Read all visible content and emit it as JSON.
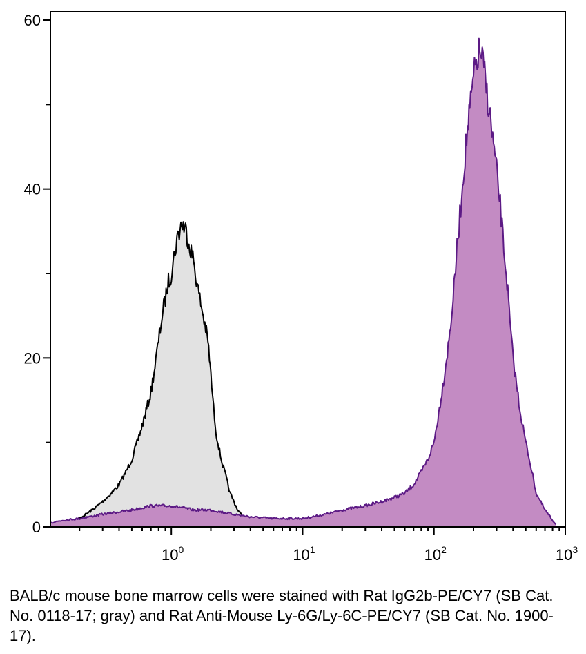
{
  "chart_data": {
    "type": "area",
    "title": "",
    "xlabel": "",
    "ylabel": "",
    "x_scale": "log",
    "xlim": [
      0.12,
      1000
    ],
    "ylim": [
      0,
      60
    ],
    "x_ticks": [
      {
        "value": 1,
        "base": "10",
        "exp": "0"
      },
      {
        "value": 10,
        "base": "10",
        "exp": "1"
      },
      {
        "value": 100,
        "base": "10",
        "exp": "2"
      },
      {
        "value": 1000,
        "base": "10",
        "exp": "3"
      }
    ],
    "y_ticks": [
      "0",
      "20",
      "40",
      "60"
    ],
    "grid": false,
    "series": [
      {
        "color_line": "#000000",
        "color_fill": "#e2e2e2",
        "x": [
          0.12,
          0.15,
          0.2,
          0.25,
          0.3,
          0.35,
          0.4,
          0.45,
          0.5,
          0.55,
          0.6,
          0.65,
          0.7,
          0.75,
          0.8,
          0.85,
          0.9,
          0.95,
          1.0,
          1.05,
          1.1,
          1.15,
          1.2,
          1.3,
          1.4,
          1.5,
          1.6,
          1.7,
          1.8,
          1.9,
          2.0,
          2.1,
          2.2,
          2.4,
          2.6,
          2.8,
          3.0,
          3.2,
          3.6,
          4.0,
          5.0
        ],
        "y": [
          0.2,
          0.5,
          1.0,
          2.0,
          3.0,
          4.0,
          5.0,
          6.5,
          8.0,
          10.0,
          12.0,
          14.0,
          16.0,
          19.0,
          22.0,
          25.0,
          27.0,
          29.0,
          30.0,
          32.0,
          34.0,
          35.0,
          36.0,
          35.0,
          33.0,
          31.0,
          28.0,
          26.0,
          24.0,
          22.0,
          18.0,
          14.0,
          11.0,
          8.0,
          6.0,
          4.0,
          3.0,
          2.0,
          1.0,
          0.4,
          0.1
        ]
      },
      {
        "color_line": "#5c1a85",
        "color_fill": "#c38bc3",
        "x": [
          0.12,
          0.15,
          0.2,
          0.3,
          0.5,
          0.7,
          1.0,
          1.5,
          2,
          3,
          4,
          6,
          8,
          10,
          15,
          20,
          30,
          40,
          50,
          60,
          70,
          80,
          90,
          100,
          110,
          120,
          130,
          140,
          150,
          160,
          170,
          180,
          190,
          200,
          210,
          220,
          230,
          240,
          250,
          260,
          280,
          300,
          320,
          340,
          360,
          380,
          400,
          450,
          500,
          550,
          600,
          700,
          800,
          850
        ],
        "y": [
          0.5,
          0.8,
          1.0,
          1.5,
          2.0,
          2.5,
          2.5,
          2.0,
          2.0,
          1.5,
          1.2,
          1.0,
          1.0,
          1.0,
          1.5,
          2.0,
          2.5,
          3.0,
          3.5,
          4.0,
          5.0,
          6.5,
          8.0,
          10.0,
          14.0,
          18.0,
          22.0,
          27.0,
          33.0,
          38.0,
          43.0,
          47.0,
          50.0,
          53.0,
          55.0,
          56.0,
          56.0,
          54.0,
          52.0,
          50.0,
          46.0,
          42.0,
          38.0,
          33.0,
          29.0,
          24.0,
          20.0,
          14.0,
          10.0,
          7.0,
          4.0,
          2.0,
          0.8,
          0.3
        ]
      }
    ]
  },
  "caption": "BALB/c mouse bone marrow cells were stained with Rat IgG2b-PE/CY7 (SB Cat. No. 0118-17; gray) and Rat Anti-Mouse Ly-6G/Ly-6C-PE/CY7 (SB Cat. No. 1900-17)."
}
